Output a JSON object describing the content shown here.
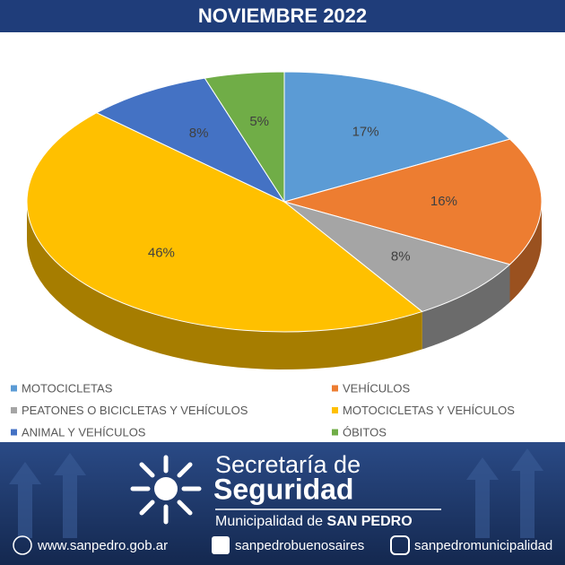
{
  "chart_data": {
    "type": "pie",
    "title": "NOVIEMBRE 2022",
    "categories": [
      "MOTOCICLETAS",
      "VEHÍCULOS",
      "PEATONES O BICICLETAS Y VEHÍCULOS",
      "MOTOCICLETAS Y VEHÍCULOS",
      "ANIMAL Y VEHÍCULOS",
      "ÓBITOS"
    ],
    "values": [
      17,
      16,
      8,
      46,
      8,
      5
    ],
    "value_labels": [
      "17%",
      "16%",
      "8%",
      "46%",
      "8%",
      "5%"
    ],
    "colors": [
      "#5b9bd5",
      "#ed7d31",
      "#a5a5a5",
      "#ffc000",
      "#4472c4",
      "#70ad47"
    ],
    "legend": "bottom"
  },
  "footer": {
    "line1": "Secretaría de",
    "line2": "Seguridad",
    "line3": "Municipalidad de",
    "line3_bold": "SAN PEDRO",
    "website": "www.sanpedro.gob.ar",
    "facebook": "sanpedrobuenosaires",
    "instagram": "sanpedromunicipalidad"
  }
}
